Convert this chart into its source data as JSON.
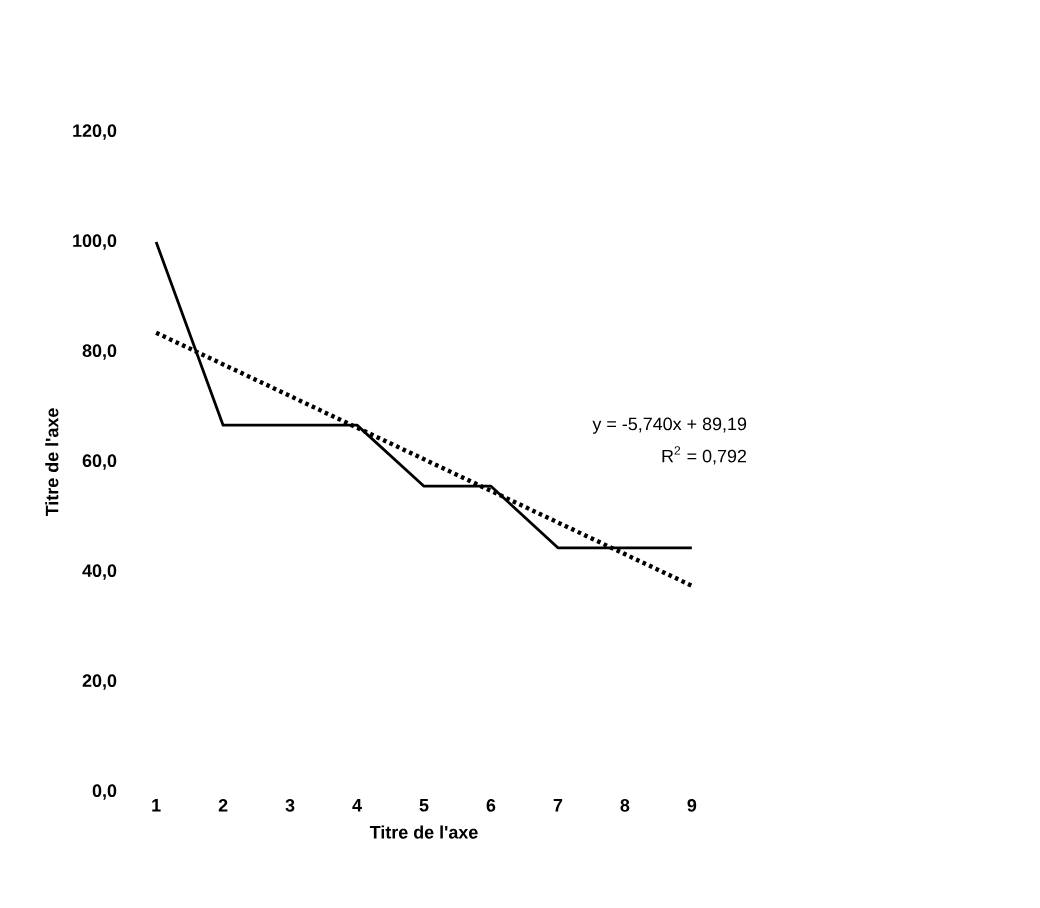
{
  "chart_data": {
    "type": "line",
    "xlabel": "Titre de l'axe",
    "ylabel": "Titre de l'axe",
    "x": [
      1,
      2,
      3,
      4,
      5,
      6,
      7,
      8,
      9
    ],
    "xlim": [
      1,
      9
    ],
    "xticks": [
      1,
      2,
      3,
      4,
      5,
      6,
      7,
      8,
      9
    ],
    "ylim": [
      0,
      120
    ],
    "yticks": [
      {
        "value": 0,
        "label": "0,0"
      },
      {
        "value": 20,
        "label": "20,0"
      },
      {
        "value": 40,
        "label": "40,0"
      },
      {
        "value": 60,
        "label": "60,0"
      },
      {
        "value": 80,
        "label": "80,0"
      },
      {
        "value": 100,
        "label": "100,0"
      },
      {
        "value": 120,
        "label": "120,0"
      }
    ],
    "series": [
      {
        "color": "#000000",
        "line_style": "solid",
        "values": [
          100,
          66.7,
          66.7,
          66.7,
          55.6,
          55.6,
          44.4,
          44.4,
          44.4
        ]
      },
      {
        "color": "#000000",
        "line_style": "dotted",
        "x": [
          1,
          9
        ],
        "values": [
          83.5,
          37.5
        ]
      }
    ],
    "annotations": [
      "y = -5,740x + 89,19",
      "R$^{2}$ = 0,792"
    ],
    "grid": false,
    "marker": "none"
  }
}
